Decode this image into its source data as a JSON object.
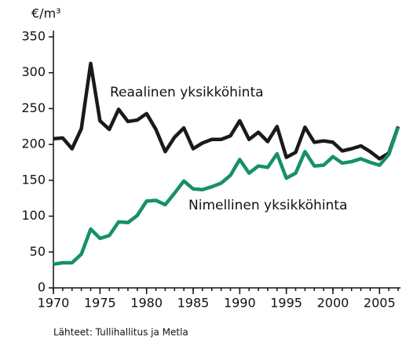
{
  "chart_data": {
    "type": "line",
    "y_label": "€/m³",
    "source": "Lähteet: Tullihallitus ja Metla",
    "x": [
      1970,
      1971,
      1972,
      1973,
      1974,
      1975,
      1976,
      1977,
      1978,
      1979,
      1980,
      1981,
      1982,
      1983,
      1984,
      1985,
      1986,
      1987,
      1988,
      1989,
      1990,
      1991,
      1992,
      1993,
      1994,
      1995,
      1996,
      1997,
      1998,
      1999,
      2000,
      2001,
      2002,
      2003,
      2004,
      2005,
      2006,
      2007
    ],
    "series": [
      {
        "name": "Reaalinen yksikköhinta",
        "color": "#1a1a1a",
        "values": [
          208,
          209,
          194,
          222,
          313,
          233,
          221,
          249,
          232,
          234,
          243,
          221,
          190,
          210,
          223,
          194,
          202,
          207,
          207,
          212,
          233,
          207,
          217,
          204,
          225,
          182,
          189,
          224,
          203,
          205,
          203,
          191,
          194,
          198,
          190,
          180,
          188,
          225
        ]
      },
      {
        "name": "Nimellinen yksikköhinta",
        "color": "#16906a",
        "values": [
          33,
          35,
          35,
          47,
          82,
          69,
          73,
          92,
          91,
          101,
          121,
          122,
          116,
          132,
          149,
          138,
          137,
          141,
          146,
          157,
          179,
          160,
          170,
          168,
          187,
          153,
          160,
          190,
          170,
          171,
          183,
          174,
          176,
          180,
          175,
          171,
          186,
          224
        ]
      }
    ],
    "xlim": [
      1970,
      2007
    ],
    "xticks": [
      1970,
      1975,
      1980,
      1985,
      1990,
      1995,
      2000,
      2005
    ],
    "ylim": [
      0,
      350
    ],
    "yticks": [
      0,
      50,
      100,
      150,
      200,
      250,
      300,
      350
    ],
    "grid": false
  }
}
